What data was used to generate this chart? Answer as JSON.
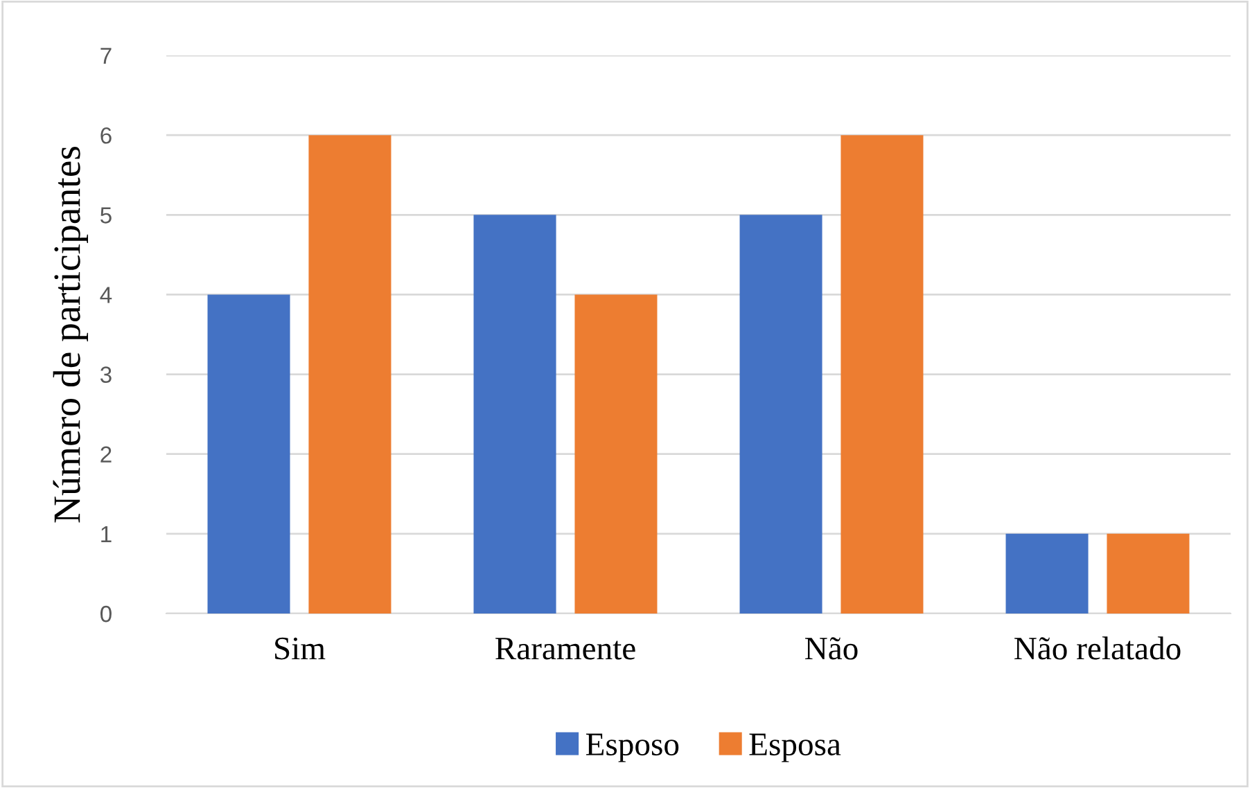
{
  "chart_data": {
    "type": "bar",
    "ylabel": "Número de participantes",
    "categories": [
      "Sim",
      "Raramente",
      "Não",
      "Não relatado"
    ],
    "series": [
      {
        "name": "Esposo",
        "color": "#4472c4",
        "values": [
          4,
          5,
          5,
          1
        ]
      },
      {
        "name": "Esposa",
        "color": "#ed7d31",
        "values": [
          6,
          4,
          6,
          1
        ]
      }
    ],
    "ylim": [
      0,
      7
    ],
    "yticks": [
      0,
      1,
      2,
      3,
      4,
      5,
      6,
      7
    ],
    "grid": "y",
    "legend": "bottom"
  }
}
